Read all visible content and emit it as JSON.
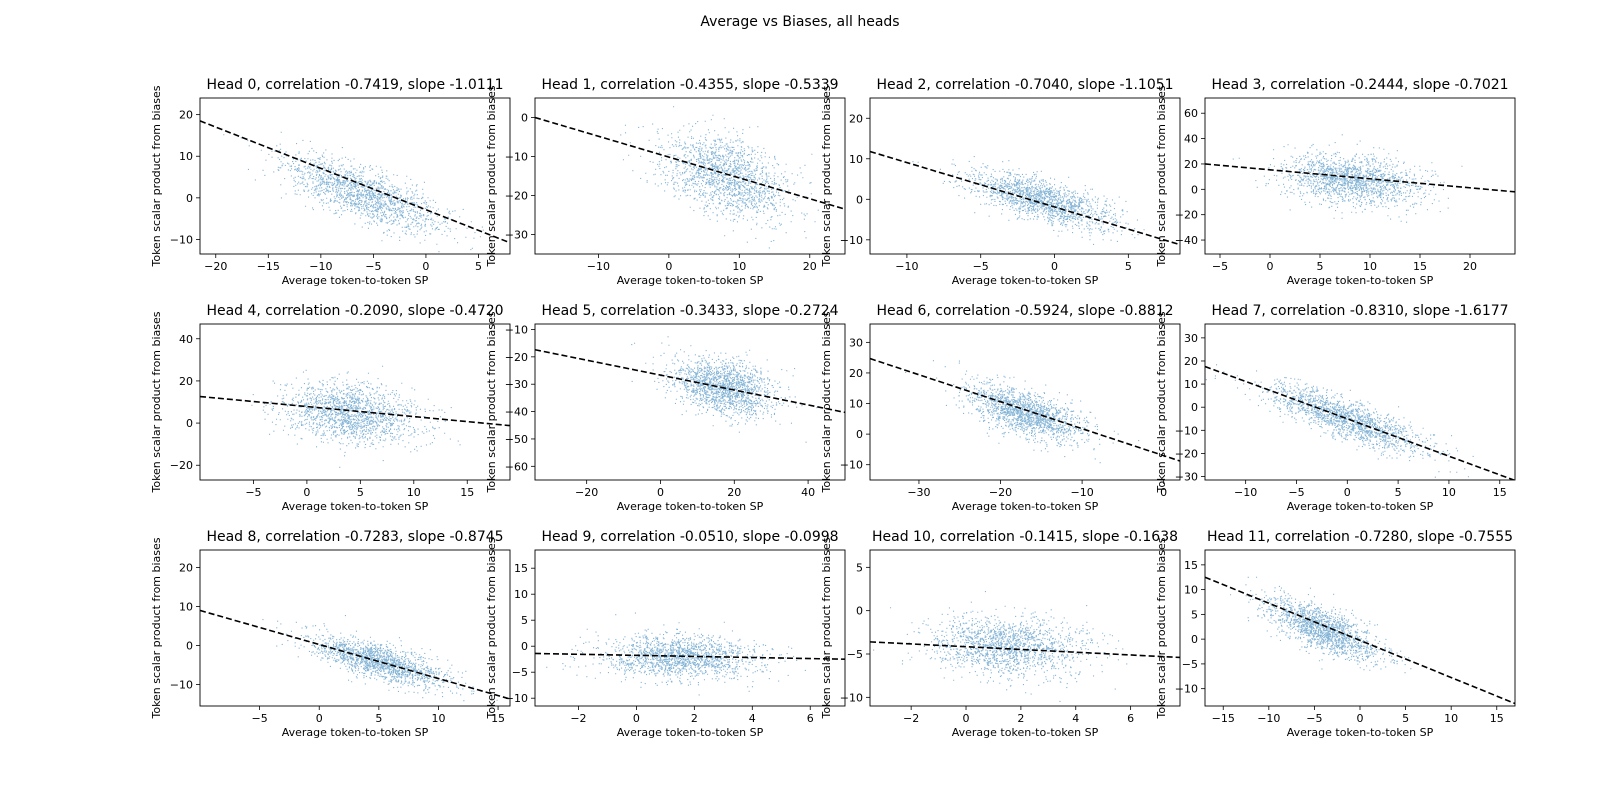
{
  "figure": {
    "suptitle": "Average vs Biases, all heads"
  },
  "colors": {
    "scatter": "#1f77b4",
    "fit_line": "#000000",
    "axes": "#000000",
    "background": "#ffffff"
  },
  "chart_data": [
    {
      "type": "scatter",
      "title": "Head 0, correlation -0.7419, slope -1.0111",
      "xlabel": "Average token-to-token SP",
      "ylabel": "Token scalar product from biases",
      "xlim": [
        -21.5,
        8
      ],
      "ylim": [
        -13.5,
        24
      ],
      "xticks": [
        -20,
        -15,
        -10,
        -5,
        0,
        5
      ],
      "yticks": [
        -10,
        0,
        10,
        20
      ],
      "cloud": {
        "center": [
          -6,
          1
        ],
        "sd": [
          3.8,
          4.5
        ],
        "correlation": -0.7419
      },
      "fit_line": {
        "slope": -1.0111,
        "x": [
          -21.5,
          8
        ],
        "y": [
          18.5,
          -10.8
        ]
      }
    },
    {
      "type": "scatter",
      "title": "Head 1, correlation -0.4355, slope -0.5339",
      "xlabel": "Average token-to-token SP",
      "ylabel": "Token scalar product from biases",
      "xlim": [
        -19,
        25
      ],
      "ylim": [
        -35,
        5
      ],
      "xticks": [
        -10,
        0,
        10,
        20
      ],
      "yticks": [
        -30,
        -20,
        -10,
        0
      ],
      "cloud": {
        "center": [
          8,
          -15
        ],
        "sd": [
          4.5,
          5.5
        ],
        "correlation": -0.4355
      },
      "fit_line": {
        "slope": -0.5339,
        "x": [
          -19,
          25
        ],
        "y": [
          0,
          -23.5
        ]
      }
    },
    {
      "type": "scatter",
      "title": "Head 2, correlation -0.7040, slope -1.1051",
      "xlabel": "Average token-to-token SP",
      "ylabel": "Token scalar product from biases",
      "xlim": [
        -12.5,
        8.5
      ],
      "ylim": [
        -13.5,
        25
      ],
      "xticks": [
        -10,
        -5,
        0,
        5
      ],
      "yticks": [
        -10,
        0,
        10,
        20
      ],
      "cloud": {
        "center": [
          -1,
          0
        ],
        "sd": [
          2.5,
          3.5
        ],
        "correlation": -0.704
      },
      "fit_line": {
        "slope": -1.1051,
        "x": [
          -12.5,
          8.5
        ],
        "y": [
          11.8,
          -11.2
        ]
      }
    },
    {
      "type": "scatter",
      "title": "Head 3, correlation -0.2444, slope -0.7021",
      "xlabel": "Average token-to-token SP",
      "ylabel": "Token scalar product from biases",
      "xlim": [
        -6.5,
        24.5
      ],
      "ylim": [
        -51,
        72
      ],
      "xticks": [
        -5,
        0,
        5,
        10,
        15,
        20
      ],
      "yticks": [
        -40,
        -20,
        0,
        20,
        40,
        60
      ],
      "cloud": {
        "center": [
          8,
          8
        ],
        "sd": [
          3.5,
          10
        ],
        "correlation": -0.2444
      },
      "fit_line": {
        "slope": -0.7021,
        "x": [
          -6.5,
          24.5
        ],
        "y": [
          20,
          -2
        ]
      }
    },
    {
      "type": "scatter",
      "title": "Head 4, correlation -0.2090, slope -0.4720",
      "xlabel": "Average token-to-token SP",
      "ylabel": "Token scalar product from biases",
      "xlim": [
        -10,
        19
      ],
      "ylim": [
        -27,
        47
      ],
      "xticks": [
        -5,
        0,
        5,
        10,
        15
      ],
      "yticks": [
        -20,
        0,
        20,
        40
      ],
      "cloud": {
        "center": [
          4,
          5
        ],
        "sd": [
          3.2,
          7
        ],
        "correlation": -0.209
      },
      "fit_line": {
        "slope": -0.472,
        "x": [
          -10,
          19
        ],
        "y": [
          12.6,
          -1.2
        ]
      }
    },
    {
      "type": "scatter",
      "title": "Head 5, correlation -0.3433, slope -0.2724",
      "xlabel": "Average token-to-token SP",
      "ylabel": "Token scalar product from biases",
      "xlim": [
        -34,
        50
      ],
      "ylim": [
        -65,
        -8
      ],
      "xticks": [
        -20,
        0,
        20,
        40
      ],
      "yticks": [
        -60,
        -50,
        -40,
        -30,
        -20,
        -10
      ],
      "cloud": {
        "center": [
          17,
          -31
        ],
        "sd": [
          7,
          5.5
        ],
        "correlation": -0.3433
      },
      "fit_line": {
        "slope": -0.2724,
        "x": [
          -34,
          50
        ],
        "y": [
          -17.4,
          -40.3
        ]
      }
    },
    {
      "type": "scatter",
      "title": "Head 6, correlation -0.5924, slope -0.8812",
      "xlabel": "Average token-to-token SP",
      "ylabel": "Token scalar product from biases",
      "xlim": [
        -36,
        2
      ],
      "ylim": [
        -15,
        36
      ],
      "xticks": [
        -30,
        -20,
        -10,
        0
      ],
      "yticks": [
        -10,
        0,
        10,
        20,
        30
      ],
      "cloud": {
        "center": [
          -17,
          7
        ],
        "sd": [
          3.5,
          4.5
        ],
        "correlation": -0.5924
      },
      "fit_line": {
        "slope": -0.8812,
        "x": [
          -36,
          2
        ],
        "y": [
          24.7,
          -8.8
        ]
      }
    },
    {
      "type": "scatter",
      "title": "Head 7, correlation -0.8310, slope -1.6177",
      "xlabel": "Average token-to-token SP",
      "ylabel": "Token scalar product from biases",
      "xlim": [
        -14,
        16.5
      ],
      "ylim": [
        -31.5,
        36
      ],
      "xticks": [
        -10,
        -5,
        0,
        5,
        10,
        15
      ],
      "yticks": [
        -30,
        -20,
        -10,
        0,
        10,
        20,
        30
      ],
      "cloud": {
        "center": [
          0,
          -5
        ],
        "sd": [
          4,
          7.5
        ],
        "correlation": -0.831
      },
      "fit_line": {
        "slope": -1.6177,
        "x": [
          -14,
          16.5
        ],
        "y": [
          17.6,
          -31.7
        ]
      }
    },
    {
      "type": "scatter",
      "title": "Head 8, correlation -0.7283, slope -0.8745",
      "xlabel": "Average token-to-token SP",
      "ylabel": "Token scalar product from biases",
      "xlim": [
        -10,
        16
      ],
      "ylim": [
        -15.5,
        24.5
      ],
      "xticks": [
        -5,
        0,
        5,
        10,
        15
      ],
      "yticks": [
        -10,
        0,
        10,
        20
      ],
      "cloud": {
        "center": [
          5,
          -4
        ],
        "sd": [
          2.8,
          3.2
        ],
        "correlation": -0.7283
      },
      "fit_line": {
        "slope": -0.8745,
        "x": [
          -10,
          16
        ],
        "y": [
          9,
          -13.7
        ]
      }
    },
    {
      "type": "scatter",
      "title": "Head 9, correlation -0.0510, slope -0.0998",
      "xlabel": "Average token-to-token SP",
      "ylabel": "Token scalar product from biases",
      "xlim": [
        -3.5,
        7.2
      ],
      "ylim": [
        -11.5,
        18.5
      ],
      "xticks": [
        -2,
        0,
        2,
        4,
        6
      ],
      "yticks": [
        -10,
        -5,
        0,
        5,
        10,
        15
      ],
      "cloud": {
        "center": [
          1.5,
          -2
        ],
        "sd": [
          1.3,
          2.1
        ],
        "correlation": -0.051
      },
      "fit_line": {
        "slope": -0.0998,
        "x": [
          -3.5,
          7.2
        ],
        "y": [
          -1.4,
          -2.5
        ]
      }
    },
    {
      "type": "scatter",
      "title": "Head 10, correlation -0.1415, slope -0.1638",
      "xlabel": "Average token-to-token SP",
      "ylabel": "Token scalar product from biases",
      "xlim": [
        -3.5,
        7.8
      ],
      "ylim": [
        -11,
        7
      ],
      "xticks": [
        -2,
        0,
        2,
        4,
        6
      ],
      "yticks": [
        -10,
        -5,
        0,
        5
      ],
      "cloud": {
        "center": [
          1.5,
          -4
        ],
        "sd": [
          1.4,
          1.7
        ],
        "correlation": -0.1415
      },
      "fit_line": {
        "slope": -0.1638,
        "x": [
          -3.5,
          7.8
        ],
        "y": [
          -3.6,
          -5.4
        ]
      }
    },
    {
      "type": "scatter",
      "title": "Head 11, correlation -0.7280, slope -0.7555",
      "xlabel": "Average token-to-token SP",
      "ylabel": "Token scalar product from biases",
      "xlim": [
        -17,
        17
      ],
      "ylim": [
        -13.5,
        18
      ],
      "xticks": [
        -15,
        -10,
        -5,
        0,
        5,
        10,
        15
      ],
      "yticks": [
        -10,
        -5,
        0,
        5,
        10,
        15
      ],
      "cloud": {
        "center": [
          -4,
          2
        ],
        "sd": [
          3.2,
          3.2
        ],
        "correlation": -0.728
      },
      "fit_line": {
        "slope": -0.7555,
        "x": [
          -17,
          17
        ],
        "y": [
          12.5,
          -13
        ]
      }
    }
  ]
}
